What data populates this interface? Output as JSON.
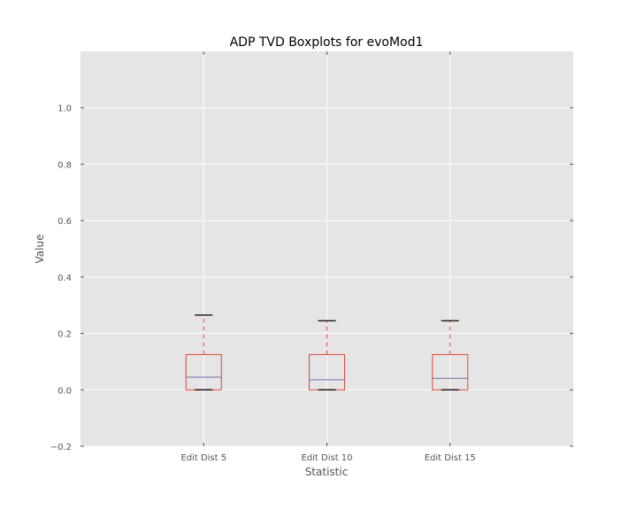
{
  "chart_data": {
    "type": "boxplot",
    "title": "ADP TVD Boxplots for evoMod1",
    "xlabel": "Statistic",
    "ylabel": "Value",
    "ylim": [
      -0.2,
      1.2
    ],
    "yticks": [
      -0.2,
      0.0,
      0.2,
      0.4,
      0.6,
      0.8,
      1.0
    ],
    "ytick_labels": [
      "−0.2",
      "0.0",
      "0.2",
      "0.4",
      "0.6",
      "0.8",
      "1.0"
    ],
    "grid": true,
    "categories": [
      "Edit Dist 5",
      "Edit Dist 10",
      "Edit Dist 15"
    ],
    "boxes": [
      {
        "label": "Edit Dist 5",
        "whisker_low": 0.0,
        "q1": 0.0,
        "median": 0.045,
        "q3": 0.125,
        "whisker_high": 0.265
      },
      {
        "label": "Edit Dist 10",
        "whisker_low": 0.0,
        "q1": 0.0,
        "median": 0.036,
        "q3": 0.125,
        "whisker_high": 0.245
      },
      {
        "label": "Edit Dist 15",
        "whisker_low": 0.0,
        "q1": 0.0,
        "median": 0.041,
        "q3": 0.125,
        "whisker_high": 0.245
      }
    ],
    "colors": {
      "background": "#e5e5e5",
      "grid": "#ffffff",
      "box": "#e24a33",
      "median": "#7a68a6",
      "whisker": "#e24a33",
      "cap": "#000000",
      "text": "#555555",
      "title": "#000000"
    }
  }
}
